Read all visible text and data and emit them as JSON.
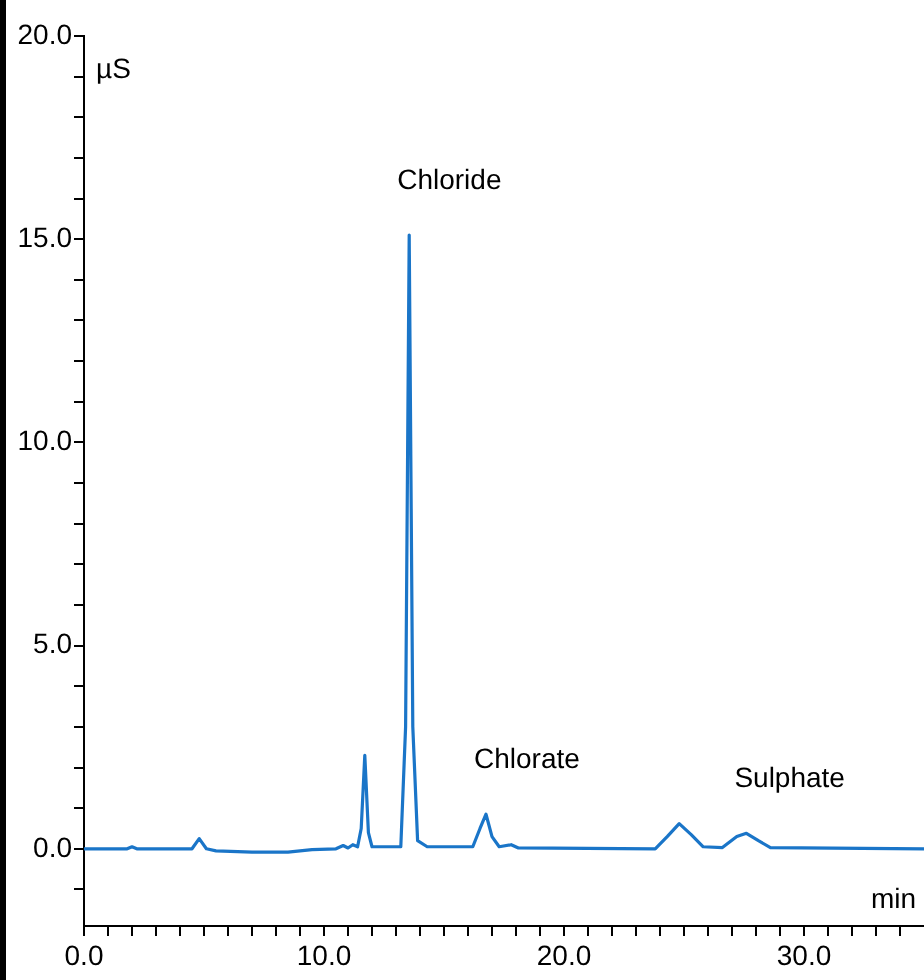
{
  "chart_data": {
    "type": "line",
    "xlabel": "min",
    "ylabel": "µS",
    "x": [
      0,
      1.8,
      2.0,
      2.2,
      4.5,
      4.8,
      5.1,
      5.5,
      7,
      8.5,
      9.5,
      10.5,
      10.8,
      11.0,
      11.2,
      11.4,
      11.55,
      11.7,
      11.85,
      12.0,
      13.2,
      13.4,
      13.55,
      13.7,
      13.9,
      14.3,
      16.2,
      16.5,
      16.75,
      17.0,
      17.3,
      17.8,
      18.1,
      23.8,
      24.3,
      24.8,
      25.3,
      25.8,
      26.6,
      27.2,
      27.6,
      28.1,
      28.6,
      35
    ],
    "series": [
      {
        "color": "#1a75c8",
        "values": [
          0,
          0,
          0.05,
          0,
          0,
          0.25,
          0,
          -0.05,
          -0.08,
          -0.08,
          -0.02,
          0,
          0.08,
          0.02,
          0.1,
          0.05,
          0.5,
          2.3,
          0.4,
          0.05,
          0.05,
          3,
          15.1,
          3,
          0.2,
          0.05,
          0.05,
          0.5,
          0.85,
          0.3,
          0.05,
          0.1,
          0.02,
          0,
          0.3,
          0.62,
          0.35,
          0.05,
          0.03,
          0.3,
          0.38,
          0.2,
          0.03,
          0
        ]
      }
    ],
    "xlim": [
      0,
      35
    ],
    "ylim": [
      -1.9,
      20
    ],
    "xticks": [
      {
        "value": 0,
        "label": "0.0"
      },
      {
        "value": 1,
        "label": null
      },
      {
        "value": 2,
        "label": null
      },
      {
        "value": 3,
        "label": null
      },
      {
        "value": 4,
        "label": null
      },
      {
        "value": 5,
        "label": null
      },
      {
        "value": 6,
        "label": null
      },
      {
        "value": 7,
        "label": null
      },
      {
        "value": 8,
        "label": null
      },
      {
        "value": 9,
        "label": null
      },
      {
        "value": 10,
        "label": "10.0"
      },
      {
        "value": 11,
        "label": null
      },
      {
        "value": 12,
        "label": null
      },
      {
        "value": 13,
        "label": null
      },
      {
        "value": 14,
        "label": null
      },
      {
        "value": 15,
        "label": null
      },
      {
        "value": 16,
        "label": null
      },
      {
        "value": 17,
        "label": null
      },
      {
        "value": 18,
        "label": null
      },
      {
        "value": 19,
        "label": null
      },
      {
        "value": 20,
        "label": "20.0"
      },
      {
        "value": 21,
        "label": null
      },
      {
        "value": 22,
        "label": null
      },
      {
        "value": 23,
        "label": null
      },
      {
        "value": 24,
        "label": null
      },
      {
        "value": 25,
        "label": null
      },
      {
        "value": 26,
        "label": null
      },
      {
        "value": 27,
        "label": null
      },
      {
        "value": 28,
        "label": null
      },
      {
        "value": 29,
        "label": null
      },
      {
        "value": 30,
        "label": "30.0"
      },
      {
        "value": 31,
        "label": null
      },
      {
        "value": 32,
        "label": null
      },
      {
        "value": 33,
        "label": null
      },
      {
        "value": 34,
        "label": null
      }
    ],
    "yticks": [
      {
        "value": -1,
        "label": null
      },
      {
        "value": 0,
        "label": "0.0"
      },
      {
        "value": 1,
        "label": null
      },
      {
        "value": 2,
        "label": null
      },
      {
        "value": 3,
        "label": null
      },
      {
        "value": 4,
        "label": null
      },
      {
        "value": 5,
        "label": "5.0"
      },
      {
        "value": 6,
        "label": null
      },
      {
        "value": 7,
        "label": null
      },
      {
        "value": 8,
        "label": null
      },
      {
        "value": 9,
        "label": null
      },
      {
        "value": 10,
        "label": "10.0"
      },
      {
        "value": 11,
        "label": null
      },
      {
        "value": 12,
        "label": null
      },
      {
        "value": 13,
        "label": null
      },
      {
        "value": 14,
        "label": null
      },
      {
        "value": 15,
        "label": "15.0"
      },
      {
        "value": 16,
        "label": null
      },
      {
        "value": 17,
        "label": null
      },
      {
        "value": 18,
        "label": null
      },
      {
        "value": 19,
        "label": null
      },
      {
        "value": 20,
        "label": "20.0"
      }
    ],
    "annotations": [
      {
        "text": "Chloride",
        "x": 13.55,
        "y": 15.1
      },
      {
        "text": "Chlorate",
        "x": 16.75,
        "y": 0.85
      },
      {
        "text": "Sulphate",
        "x": 27.6,
        "y": 0.38
      }
    ],
    "grid": false,
    "legend": false,
    "marker": "none",
    "line_style": "solid"
  }
}
